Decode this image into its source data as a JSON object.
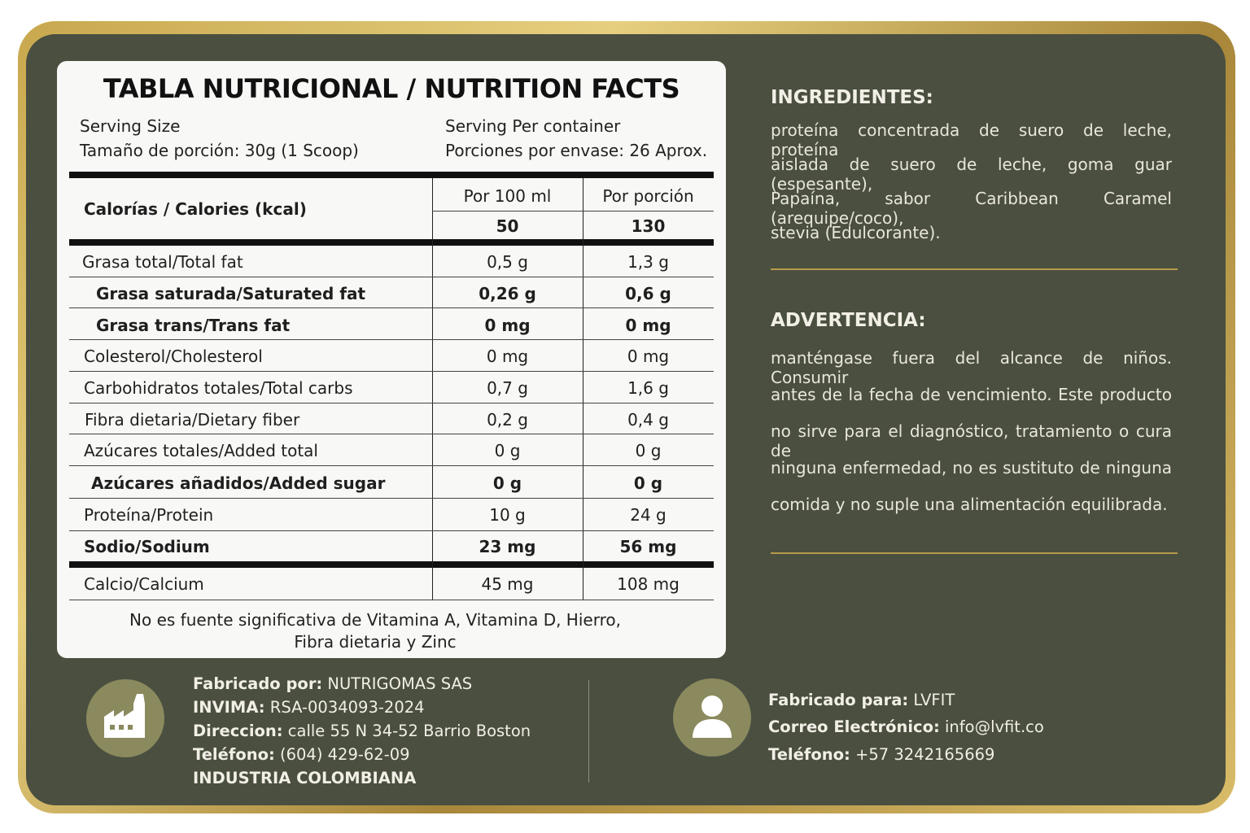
{
  "table": {
    "title": "TABLA NUTRICIONAL / NUTRITION FACTS",
    "serving_size_label": "Serving Size",
    "serving_size_value": "Tamaño de porción: 30g (1 Scoop)",
    "servings_label": "Serving Per container",
    "servings_value": "Porciones por envase: 26 Aprox.",
    "calories_label": "Calorías / Calories (kcal)",
    "col_100": "Por 100 ml",
    "col_portion": "Por porción",
    "cal_100": "50",
    "cal_portion": "130",
    "rows": [
      {
        "label": "Grasa total/Total fat",
        "v100": "0,5 g",
        "vpor": "1,3 g"
      },
      {
        "label": "Grasa saturada/Saturated fat",
        "v100": "0,26 g",
        "vpor": "0,6 g"
      },
      {
        "label": "Grasa trans/Trans fat",
        "v100": "0 mg",
        "vpor": "0 mg"
      },
      {
        "label": "Colesterol/Cholesterol",
        "v100": "0 mg",
        "vpor": "0 mg"
      },
      {
        "label": "Carbohidratos totales/Total carbs",
        "v100": "0,7 g",
        "vpor": "1,6 g"
      },
      {
        "label": "Fibra dietaria/Dietary fiber",
        "v100": "0,2 g",
        "vpor": "0,4 g"
      },
      {
        "label": "Azúcares totales/Added total",
        "v100": "0 g",
        "vpor": "0 g"
      },
      {
        "label": "Azúcares añadidos/Added sugar",
        "v100": "0 g",
        "vpor": "0 g"
      },
      {
        "label": "Proteína/Protein",
        "v100": "10 g",
        "vpor": "24 g"
      },
      {
        "label": "Sodio/Sodium",
        "v100": "23 mg",
        "vpor": "56 mg"
      },
      {
        "label": "Calcio/Calcium",
        "v100": "45 mg",
        "vpor": "108 mg"
      }
    ],
    "note_line1": "No es fuente significativa de Vitamina A, Vitamina D, Hierro,",
    "note_line2": "Fibra dietaria y Zinc"
  },
  "ingredients": {
    "heading": "INGREDIENTES:",
    "lines": [
      "proteína concentrada de suero de leche, proteína",
      "aislada de suero de leche, goma guar (espesante),",
      "Papaína, sabor Caribbean Caramel (arequipe/coco),",
      "stevia (Edulcorante)."
    ]
  },
  "warning": {
    "heading": "ADVERTENCIA:",
    "lines": [
      "manténgase fuera del alcance de niños. Consumir",
      "antes de la fecha de vencimiento. Este producto",
      "no sirve para el diagnóstico, tratamiento o cura de",
      "ninguna enfermedad, no es sustituto de ninguna",
      "comida y no suple una alimentación equilibrada."
    ]
  },
  "manufacturer": {
    "icon": "factory-icon",
    "made_by_label": "Fabricado por:",
    "made_by_value": " NUTRIGOMAS SAS",
    "invima_label": "INVIMA:",
    "invima_value": " RSA-0034093-2024",
    "address_label": "Direccion:",
    "address_value": " calle 55 N 34-52 Barrio Boston",
    "phone_label": "Teléfono:",
    "phone_value": " (604) 429-62-09",
    "origin": "INDUSTRIA COLOMBIANA"
  },
  "client": {
    "icon": "user-icon",
    "made_for_label": "Fabricado para:",
    "made_for_value": " LVFIT",
    "email_label": "Correo Electrónico:",
    "email_value": " info@lvfit.co",
    "phone_label": "Teléfono:",
    "phone_value": " +57 3242165669"
  },
  "colors": {
    "panel": "#4a4f40",
    "gold": "#c8a84e",
    "card": "#f8f8f6"
  }
}
